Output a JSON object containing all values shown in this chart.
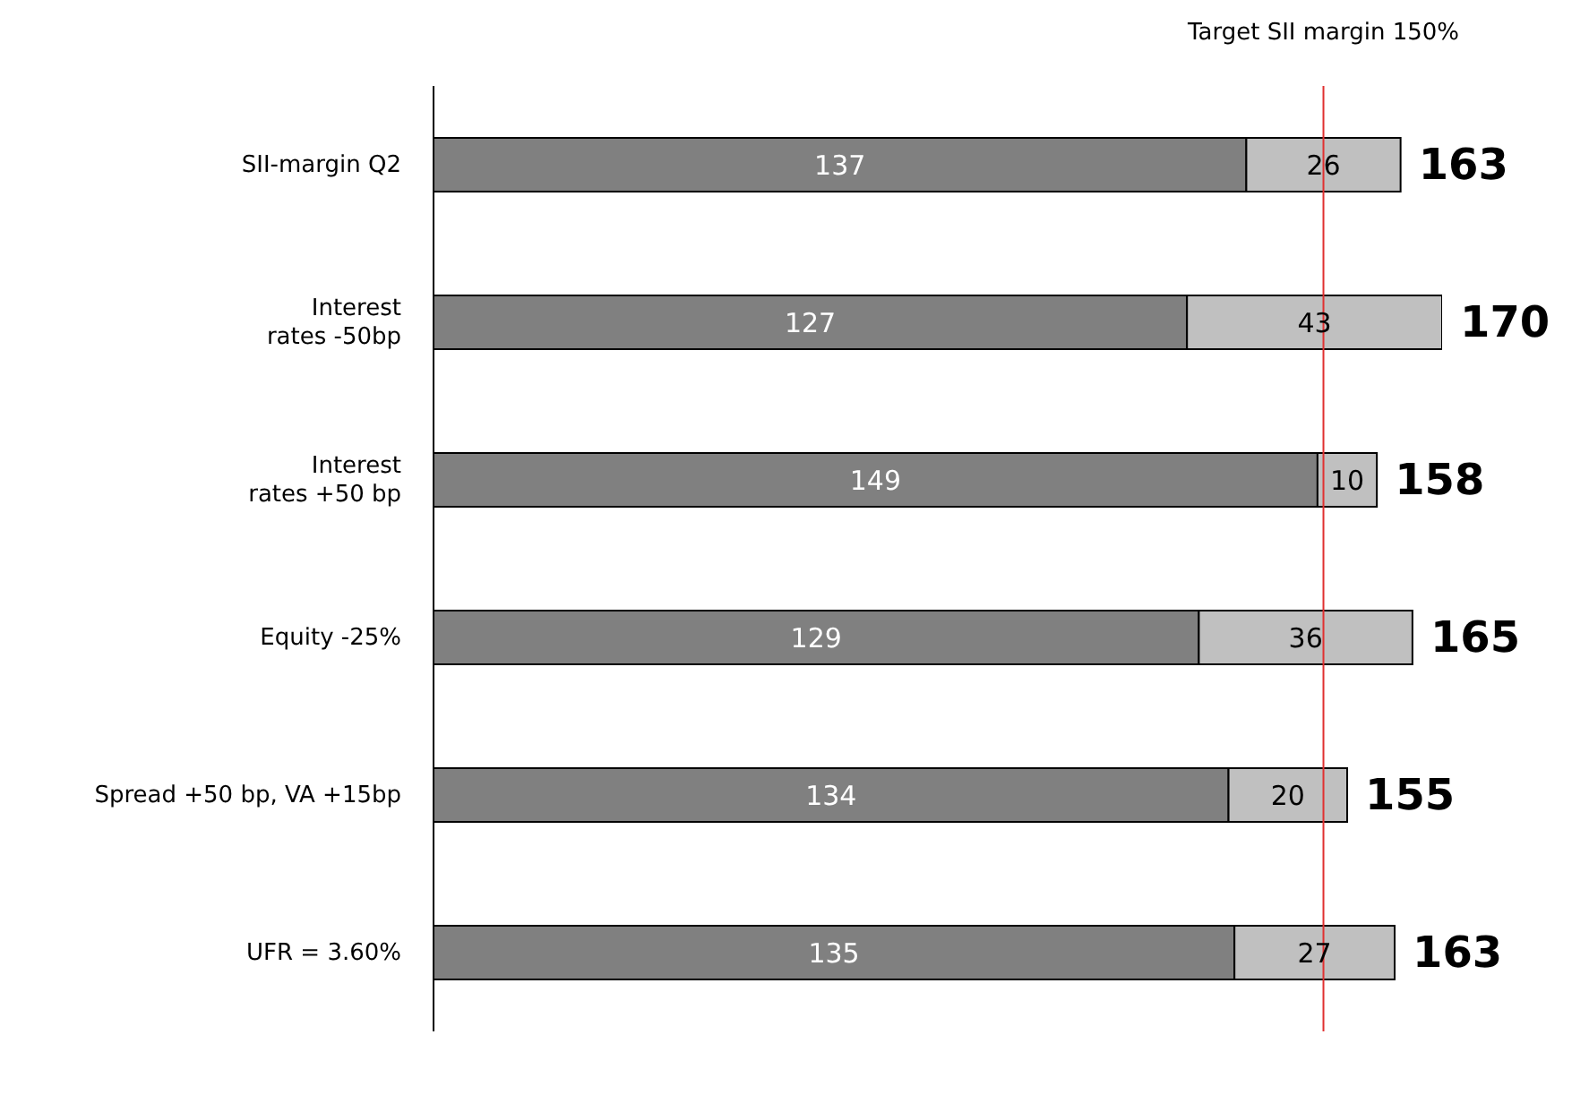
{
  "chart_data": {
    "type": "bar",
    "orientation": "horizontal",
    "stacked": true,
    "data_labels": true,
    "categories": [
      "SII-margin Q2",
      "Interest\nrates -50bp",
      "Interest\nrates +50 bp",
      "Equity -25%",
      "Spread +50 bp, VA +15bp",
      "UFR = 3.60%"
    ],
    "series": [
      {
        "color": "#808080",
        "values": [
          137,
          127,
          149,
          129,
          134,
          135
        ]
      },
      {
        "color": "#c0c0c0",
        "values": [
          26,
          43,
          10,
          36,
          20,
          27
        ]
      }
    ],
    "totals": [
      "163",
      "170",
      "158",
      "165",
      "155",
      "163"
    ],
    "ref_lines": [
      {
        "axis": "x",
        "value": 150,
        "label": "Target SII margin 150%",
        "color": "#e03030"
      }
    ]
  }
}
